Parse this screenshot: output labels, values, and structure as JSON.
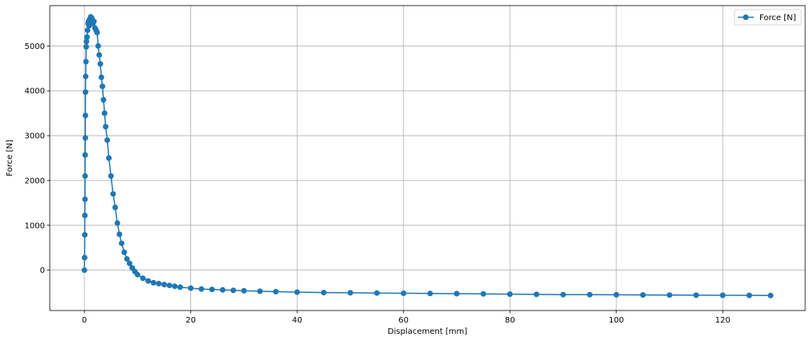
{
  "chart_data": {
    "type": "line",
    "xlabel": "Displacement [mm]",
    "ylabel": "Force [N]",
    "xlim": [
      -6.5,
      135.5
    ],
    "ylim": [
      -900,
      5900
    ],
    "x_ticks": [
      0,
      20,
      40,
      60,
      80,
      100,
      120
    ],
    "y_ticks": [
      0,
      1000,
      2000,
      3000,
      4000,
      5000
    ],
    "grid": true,
    "legend_position": "top-right",
    "series": [
      {
        "name": "Force [N]",
        "color": "#1f77b4",
        "marker": "circle",
        "x": [
          0.0,
          0.05,
          0.08,
          0.1,
          0.12,
          0.14,
          0.16,
          0.18,
          0.2,
          0.22,
          0.25,
          0.3,
          0.35,
          0.4,
          0.5,
          0.6,
          0.7,
          0.8,
          0.9,
          1.0,
          1.2,
          1.4,
          1.6,
          1.8,
          2.0,
          2.2,
          2.4,
          2.6,
          2.8,
          3.0,
          3.2,
          3.4,
          3.6,
          3.8,
          4.0,
          4.3,
          4.6,
          5.0,
          5.4,
          5.8,
          6.2,
          6.6,
          7.0,
          7.5,
          8.0,
          8.5,
          9.0,
          9.5,
          10.0,
          11.0,
          12.0,
          13.0,
          14.0,
          15.0,
          16.0,
          17.0,
          18.0,
          20.0,
          22.0,
          24.0,
          26.0,
          28.0,
          30.0,
          33.0,
          36.0,
          40.0,
          45.0,
          50.0,
          55.0,
          60.0,
          65.0,
          70.0,
          75.0,
          80.0,
          85.0,
          90.0,
          95.0,
          100.0,
          105.0,
          110.0,
          115.0,
          120.0,
          125.0,
          129.0
        ],
        "y": [
          0,
          280,
          790,
          1220,
          1580,
          2100,
          2570,
          2950,
          3450,
          3970,
          4320,
          4650,
          4980,
          5100,
          5200,
          5350,
          5500,
          5550,
          5450,
          5600,
          5650,
          5620,
          5500,
          5550,
          5400,
          5350,
          5300,
          5000,
          4800,
          4600,
          4300,
          4100,
          3800,
          3500,
          3200,
          2900,
          2500,
          2100,
          1700,
          1400,
          1050,
          800,
          600,
          400,
          250,
          150,
          50,
          -30,
          -100,
          -180,
          -240,
          -280,
          -300,
          -320,
          -340,
          -360,
          -380,
          -400,
          -420,
          -430,
          -440,
          -450,
          -460,
          -470,
          -480,
          -490,
          -500,
          -505,
          -510,
          -515,
          -520,
          -525,
          -530,
          -535,
          -540,
          -545,
          -548,
          -550,
          -552,
          -555,
          -558,
          -560,
          -562,
          -565
        ]
      }
    ]
  }
}
